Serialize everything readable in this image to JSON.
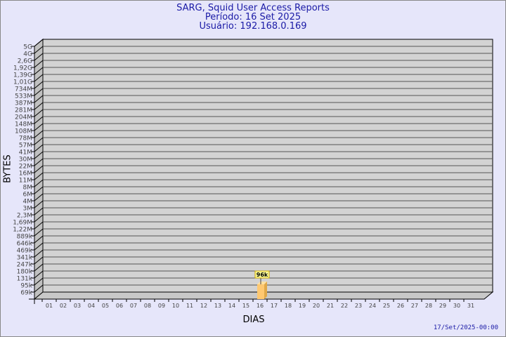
{
  "title": "SARG, Squid User Access Reports",
  "period": "Período: 16 Set 2025",
  "user": "Usuário: 192.168.0.169",
  "footer": "17/Set/2025-00:00",
  "chart_data": {
    "type": "bar",
    "xlabel": "DIAS",
    "ylabel": "BYTES",
    "y_scale": "log",
    "grid": true,
    "y_tick_labels": [
      "5G",
      "4G",
      "2,6G",
      "1,92G",
      "1,39G",
      "1,01G",
      "734M",
      "533M",
      "387M",
      "281M",
      "204M",
      "148M",
      "108M",
      "78M",
      "57M",
      "41M",
      "30M",
      "22M",
      "16M",
      "11M",
      "8M",
      "6M",
      "4M",
      "3M",
      "2,3M",
      "1,69M",
      "1,22M",
      "889k",
      "646k",
      "469k",
      "341k",
      "247k",
      "180k",
      "131k",
      "95k",
      "69k"
    ],
    "categories": [
      "01",
      "02",
      "03",
      "04",
      "05",
      "06",
      "07",
      "08",
      "09",
      "10",
      "11",
      "12",
      "13",
      "14",
      "15",
      "16",
      "17",
      "18",
      "19",
      "20",
      "21",
      "22",
      "23",
      "24",
      "25",
      "26",
      "27",
      "28",
      "29",
      "30",
      "31"
    ],
    "bars": [
      {
        "day": "16",
        "label": "96k"
      }
    ],
    "colors": {
      "bar": "#ffc870",
      "wall": "#d3d3d3",
      "background": "#e6e6fa",
      "text": "#1a1aa6"
    }
  }
}
